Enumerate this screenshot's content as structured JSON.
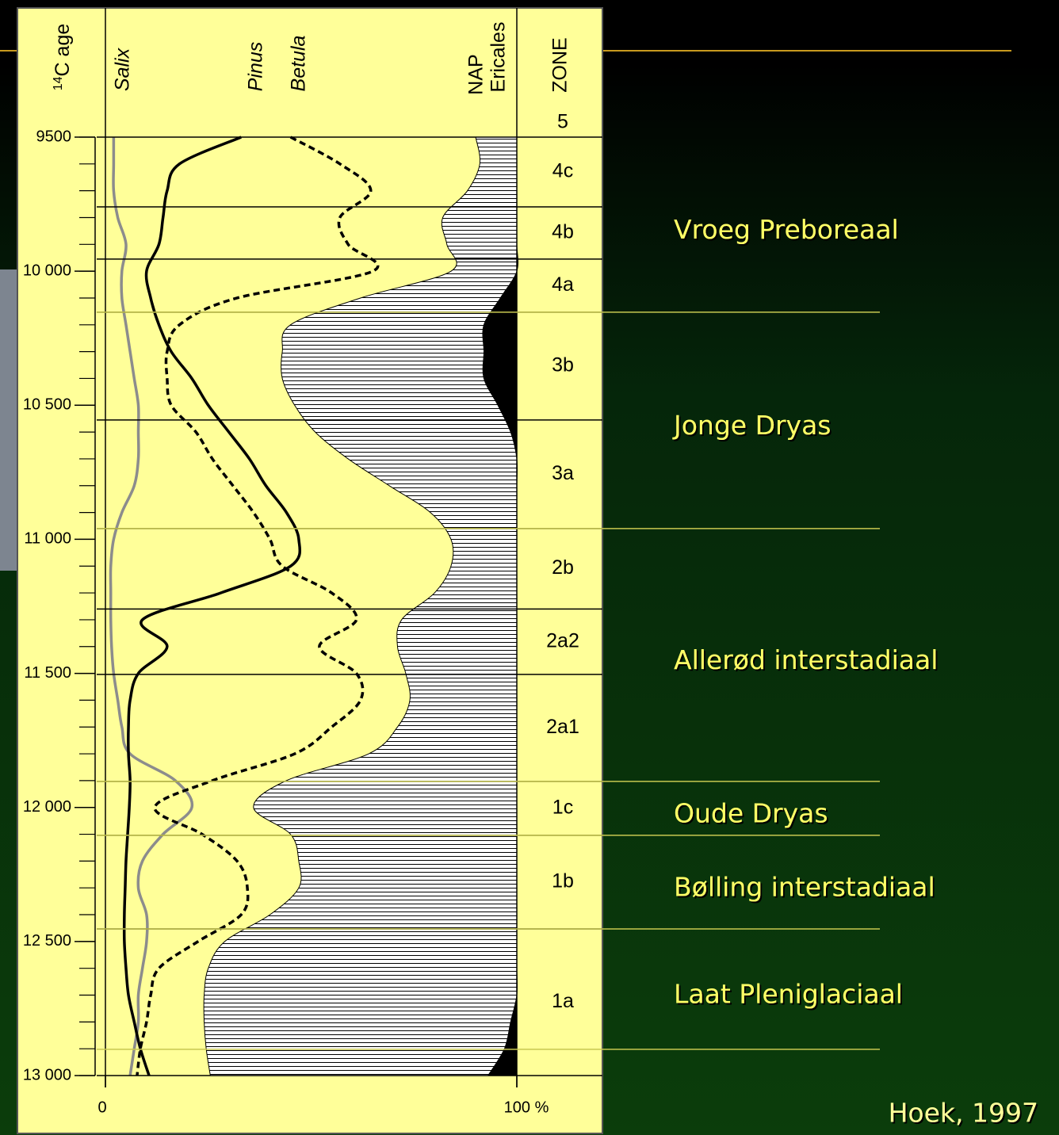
{
  "chart_data": {
    "type": "pollen",
    "age_label": {
      "superscript": "14",
      "text": "C age"
    },
    "zone_title": "ZONE",
    "ages": [
      9500,
      9600,
      9700,
      9800,
      9900,
      10000,
      10100,
      10200,
      10300,
      10400,
      10500,
      10600,
      10700,
      10800,
      10900,
      11000,
      11100,
      11200,
      11300,
      11400,
      11500,
      11600,
      11700,
      11800,
      11900,
      12000,
      12100,
      12200,
      12300,
      12400,
      12500,
      12600,
      12700,
      12800,
      12900,
      13000
    ],
    "series": [
      {
        "name": "Salix",
        "color": "#8c8c8c",
        "draw": "line",
        "values": [
          2,
          2,
          2,
          3,
          5,
          4,
          4,
          5,
          6,
          7,
          8,
          8,
          8,
          7,
          4,
          2,
          1.3,
          1.3,
          1.3,
          1.5,
          2,
          3,
          4,
          6,
          17,
          21,
          14,
          9,
          8,
          10,
          10,
          9,
          8,
          8,
          7,
          6
        ]
      },
      {
        "name": "Pinus",
        "color": "#000000",
        "draw": "line",
        "values": [
          33,
          18,
          15,
          14,
          13,
          10,
          11,
          13,
          16,
          21,
          25,
          30,
          35,
          39,
          44,
          47,
          45,
          28,
          9,
          15,
          8,
          6,
          5.6,
          5.6,
          6,
          5.8,
          5.4,
          5,
          4.8,
          4.6,
          4.6,
          5,
          5.6,
          7,
          8.5,
          10.6
        ]
      },
      {
        "name": "Betula",
        "color": "#000000",
        "draw": "dashed",
        "values": [
          45,
          57,
          64.5,
          57,
          59,
          65,
          32,
          18,
          15,
          15,
          16,
          22,
          26,
          31,
          36,
          40,
          43,
          55,
          61,
          52,
          61,
          62,
          55,
          46,
          26,
          12,
          23.5,
          32,
          34.5,
          33,
          22.5,
          13,
          11,
          10,
          8.5,
          7.7
        ]
      },
      {
        "name": "NAP",
        "color": "#000000",
        "draw": "hatch",
        "values": [
          90,
          91,
          88,
          82,
          83,
          84,
          62,
          45,
          43,
          43,
          46,
          51,
          59,
          69,
          79,
          84,
          84,
          80,
          72,
          71,
          73,
          74,
          71,
          64,
          44,
          36,
          45,
          47,
          47,
          40,
          29,
          25,
          24,
          24,
          24.5,
          25.5
        ]
      },
      {
        "name": "Ericales",
        "color": "#000000",
        "draw": "solid",
        "values": [
          100,
          100,
          100,
          100,
          100,
          100,
          96,
          92,
          92,
          92,
          95.4,
          98.5,
          100,
          100,
          100,
          100,
          100,
          100,
          100,
          100,
          100,
          100,
          100,
          100,
          100,
          100,
          100,
          100,
          100,
          100,
          100,
          100,
          100,
          98.5,
          97,
          93
        ]
      }
    ],
    "xlim": [
      0,
      100
    ],
    "xticks": [
      0,
      {
        "value": 100,
        "label": "100 %"
      }
    ],
    "ylim": [
      9500,
      13000
    ],
    "yticks": [
      9500,
      {
        "value": 10000,
        "label": "10 000"
      },
      {
        "value": 10500,
        "label": "10 500"
      },
      {
        "value": 11000,
        "label": "11 000"
      },
      {
        "value": 11500,
        "label": "11 500"
      },
      {
        "value": 12000,
        "label": "12 000"
      },
      {
        "value": 12500,
        "label": "12 500"
      },
      {
        "value": 13000,
        "label": "13 000"
      }
    ],
    "zones": [
      "5",
      "4c",
      "4b",
      "4a",
      "3b",
      "3a",
      "2b",
      "2a2",
      "2a1",
      "1c",
      "1b",
      "1a"
    ],
    "zone_bounds": [
      9500,
      9760,
      9955,
      10153,
      10555,
      10960,
      11260,
      11504,
      11903,
      12104,
      12453,
      13000
    ],
    "periods": [
      {
        "label": "Vroeg Preboreaal",
        "lim": [
          9500,
          10153
        ]
      },
      {
        "label": "Jonge Dryas",
        "lim": [
          10153,
          10960
        ]
      },
      {
        "label": "Allerød interstadiaal",
        "lim": [
          10960,
          11903
        ]
      },
      {
        "label": "Oude Dryas",
        "lim": [
          11903,
          12104
        ]
      },
      {
        "label": "Bølling interstadiaal",
        "lim": [
          12104,
          12453
        ]
      },
      {
        "label": "Laat Pleniglaciaal",
        "lim": [
          12453,
          12902
        ]
      }
    ],
    "source": "Hoek, 1997"
  }
}
